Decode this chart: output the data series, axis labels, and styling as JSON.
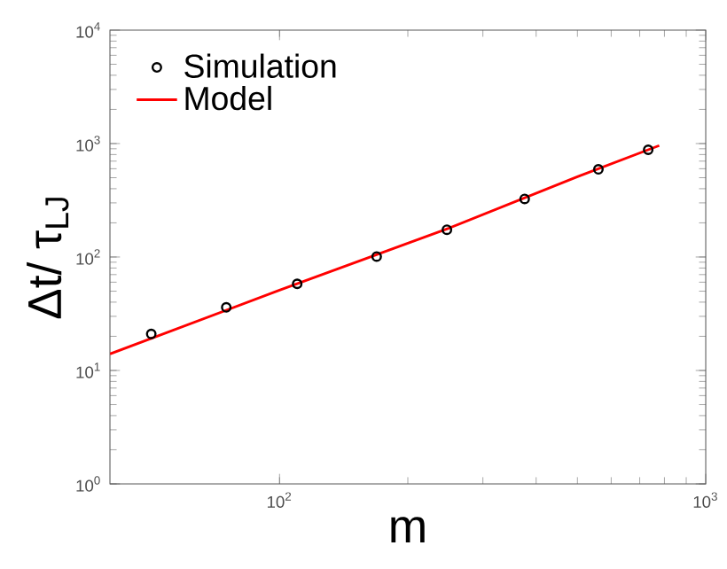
{
  "chart_data": {
    "type": "scatter",
    "xlabel": "m",
    "ylabel": "Δt/ τ$_{LJ}$",
    "log": "xy",
    "legend": "top left",
    "xlim": [
      40,
      1000
    ],
    "ylim": [
      1,
      10000
    ],
    "xticks": [
      {
        "value": 100,
        "label": "10$^{2}$"
      },
      {
        "value": 1000,
        "label": "10$^{3}$"
      }
    ],
    "yticks": [
      {
        "value": 1,
        "label": "10$^{0}$"
      },
      {
        "value": 10,
        "label": "10$^{1}$"
      },
      {
        "value": 100,
        "label": "10$^{2}$"
      },
      {
        "value": 1000,
        "label": "10$^{3}$"
      },
      {
        "value": 10000,
        "label": "10$^{4}$"
      }
    ],
    "series": [
      {
        "name": "Simulation",
        "marker": "circle",
        "color": "#000000",
        "x": [
          50,
          75,
          110,
          169,
          247,
          376,
          560,
          733
        ],
        "values": [
          21,
          36,
          58,
          101,
          174,
          325,
          593,
          881
        ]
      },
      {
        "name": "Model",
        "type": "line",
        "color": "#ff0000",
        "x": [
          40,
          100,
          250,
          500,
          778
        ],
        "values": [
          14,
          51,
          180,
          510,
          960
        ]
      }
    ]
  }
}
